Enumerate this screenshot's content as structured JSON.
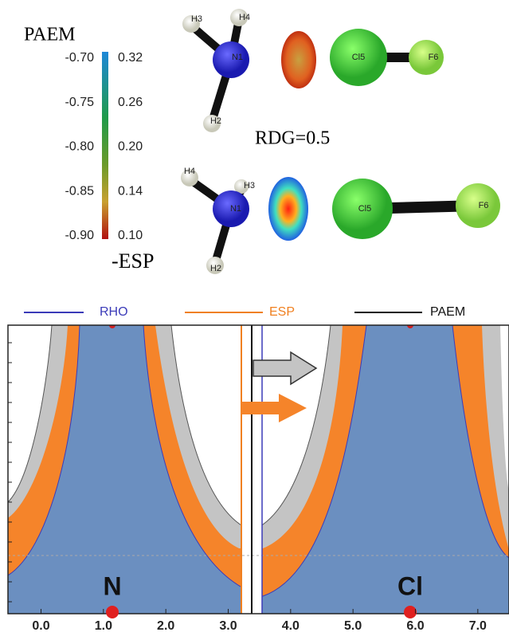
{
  "colorbar": {
    "title": "PAEM",
    "left_ticks": [
      "-0.70",
      "-0.75",
      "-0.80",
      "-0.85",
      "-0.90"
    ],
    "right_ticks": [
      "0.32",
      "0.26",
      "0.20",
      "0.14",
      "0.10"
    ],
    "bottom_label": "-ESP"
  },
  "molecule_top": {
    "atoms": [
      "H3",
      "H4",
      "N1",
      "H2",
      "Cl5",
      "F6"
    ]
  },
  "rdg_label": "RDG=0.5",
  "molecule_bottom": {
    "atoms": [
      "H4",
      "H3",
      "N1",
      "H2",
      "Cl5",
      "F6"
    ]
  },
  "plot": {
    "legend": [
      "RHO",
      "ESP",
      "PAEM"
    ],
    "xlim": [
      -0.53,
      7.5
    ],
    "xticks": [
      {
        "value": 0,
        "label": "0.0"
      },
      {
        "value": 1,
        "label": "1.0"
      },
      {
        "value": 2,
        "label": "2.0"
      },
      {
        "value": 3,
        "label": "3.0"
      },
      {
        "value": 4,
        "label": "4.0"
      },
      {
        "value": 5,
        "label": "5.0"
      },
      {
        "value": 6,
        "label": "6.0"
      },
      {
        "value": 7,
        "label": "7.0"
      }
    ],
    "atom_labels": [
      "N",
      "Cl"
    ]
  }
}
